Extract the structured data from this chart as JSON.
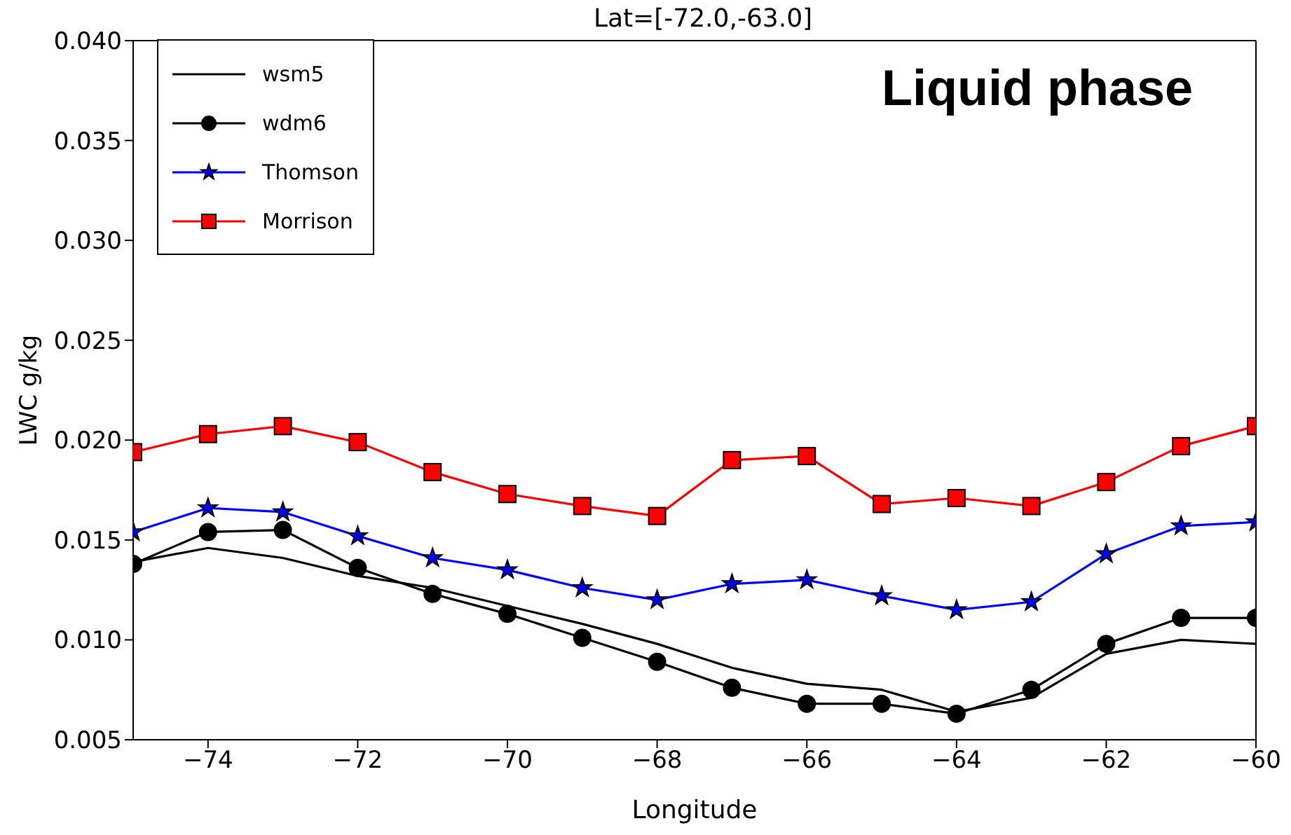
{
  "chart_data": {
    "type": "line",
    "title": "Lat=[-72.0,-63.0]",
    "xlabel": "Longitude",
    "ylabel": "LWC g/kg",
    "annotations": [
      "Liquid phase"
    ],
    "x": [
      -75,
      -74,
      -73,
      -72,
      -71,
      -70,
      -69,
      -68,
      -67,
      -66,
      -65,
      -64,
      -63,
      -62,
      -61,
      -60
    ],
    "series": [
      {
        "name": "wsm5",
        "color": "#000000",
        "marker": "none",
        "values": [
          0.0139,
          0.0146,
          0.0141,
          0.0132,
          0.0126,
          0.0117,
          0.0108,
          0.0098,
          0.0086,
          0.0078,
          0.0075,
          0.0064,
          0.0071,
          0.0093,
          0.01,
          0.0098
        ]
      },
      {
        "name": "wdm6",
        "color": "#000000",
        "marker": "circle",
        "values": [
          0.0138,
          0.0154,
          0.0155,
          0.0136,
          0.0123,
          0.0113,
          0.0101,
          0.0089,
          0.0076,
          0.0068,
          0.0068,
          0.0063,
          0.0075,
          0.0098,
          0.0111,
          0.0111
        ]
      },
      {
        "name": "Thomson",
        "color": "#0000ff",
        "marker": "star",
        "values": [
          0.0154,
          0.0166,
          0.0164,
          0.0152,
          0.0141,
          0.0135,
          0.0126,
          0.012,
          0.0128,
          0.013,
          0.0122,
          0.0115,
          0.0119,
          0.0143,
          0.0157,
          0.0159
        ]
      },
      {
        "name": "Morrison",
        "color": "#ff0000",
        "marker": "square",
        "values": [
          0.0194,
          0.0203,
          0.0207,
          0.0199,
          0.0184,
          0.0173,
          0.0167,
          0.0162,
          0.019,
          0.0192,
          0.0168,
          0.0171,
          0.0167,
          0.0179,
          0.0197,
          0.0207
        ]
      }
    ],
    "xlim": [
      -75,
      -60
    ],
    "xticks": [
      -74,
      -72,
      -70,
      -68,
      -66,
      -64,
      -62,
      -60
    ],
    "ylim": [
      0.005,
      0.04
    ],
    "yticks": [
      {
        "value": 0.005,
        "label": "0.005"
      },
      {
        "value": 0.01,
        "label": "0.010"
      },
      {
        "value": 0.015,
        "label": "0.015"
      },
      {
        "value": 0.02,
        "label": "0.020"
      },
      {
        "value": 0.025,
        "label": "0.025"
      },
      {
        "value": 0.03,
        "label": "0.030"
      },
      {
        "value": 0.035,
        "label": "0.035"
      },
      {
        "value": 0.04,
        "label": "0.040"
      }
    ],
    "grid": false,
    "legend": "top left",
    "line_style": "solid"
  }
}
